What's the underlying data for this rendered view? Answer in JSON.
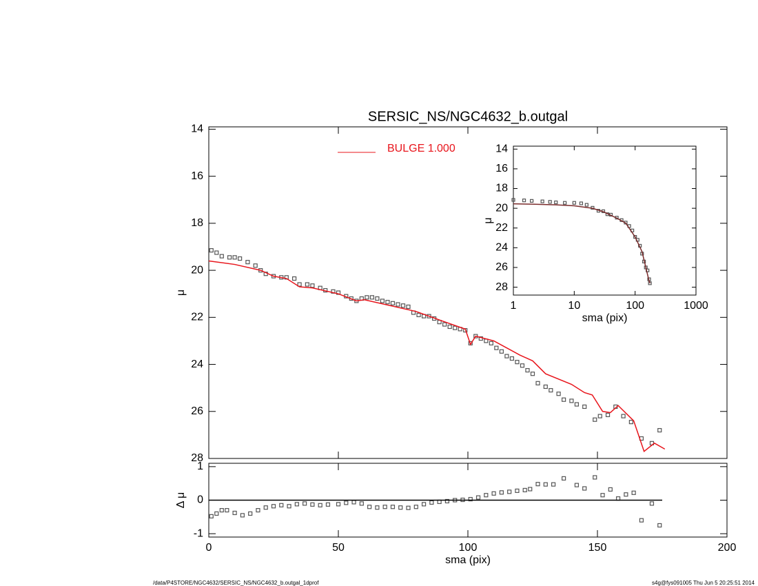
{
  "chart_data": [
    {
      "type": "line",
      "title": "SERSIC_NS/NGC4632_b.outgal",
      "ylabel": "μ",
      "xlim": [
        0,
        200
      ],
      "xticks": [
        0,
        50,
        100,
        150,
        200
      ],
      "xtick_labels": false,
      "ylim": [
        13.9,
        28
      ],
      "y_reversed": true,
      "yticks": [
        14,
        16,
        18,
        20,
        22,
        24,
        26,
        28
      ],
      "legend": "top-center",
      "series": [
        {
          "marker": "square",
          "color": "#555555",
          "x": [
            1,
            3,
            5,
            8,
            10,
            12,
            15,
            18,
            20,
            22,
            25,
            28,
            30,
            33,
            35,
            38,
            40,
            43,
            45,
            48,
            50,
            53,
            55,
            57,
            59,
            61,
            63,
            65,
            67,
            69,
            71,
            73,
            75,
            77,
            79,
            81,
            83,
            85,
            87,
            89,
            91,
            93,
            95,
            97,
            99,
            101,
            103,
            105,
            107,
            109,
            111,
            113,
            115,
            117,
            119,
            121,
            123,
            125,
            127,
            130,
            132,
            135,
            137,
            140,
            142,
            145,
            149,
            151,
            154,
            157,
            160,
            163,
            167,
            171,
            174
          ],
          "values": [
            19.15,
            19.25,
            19.4,
            19.45,
            19.45,
            19.5,
            19.65,
            19.8,
            20.0,
            20.15,
            20.25,
            20.3,
            20.3,
            20.35,
            20.6,
            20.6,
            20.65,
            20.75,
            20.85,
            20.9,
            20.95,
            21.1,
            21.2,
            21.3,
            21.2,
            21.15,
            21.15,
            21.2,
            21.3,
            21.35,
            21.4,
            21.45,
            21.5,
            21.55,
            21.8,
            21.9,
            21.95,
            21.95,
            22.05,
            22.2,
            22.3,
            22.4,
            22.45,
            22.5,
            22.55,
            23.1,
            22.8,
            22.9,
            23.0,
            23.1,
            23.3,
            23.45,
            23.65,
            23.75,
            23.9,
            24.05,
            24.25,
            24.4,
            24.8,
            24.95,
            25.1,
            25.25,
            25.5,
            25.55,
            25.7,
            25.8,
            26.35,
            26.2,
            26.15,
            25.8,
            26.2,
            26.45,
            27.15,
            27.35,
            26.8
          ]
        },
        {
          "name": "BULGE  1.000",
          "marker": "line",
          "color": "#e8141b",
          "x": [
            0,
            10,
            20,
            25,
            30,
            35,
            40,
            50,
            57,
            60,
            70,
            80,
            90,
            99,
            101,
            103,
            110,
            115,
            120,
            125,
            130,
            140,
            145,
            148,
            152,
            155,
            158,
            164,
            168,
            172,
            176
          ],
          "values": [
            19.6,
            19.75,
            20.0,
            20.25,
            20.35,
            20.7,
            20.75,
            21.0,
            21.3,
            21.25,
            21.5,
            21.75,
            22.15,
            22.5,
            23.15,
            22.8,
            23.0,
            23.3,
            23.6,
            23.85,
            24.4,
            24.85,
            25.2,
            25.3,
            26.0,
            26.05,
            25.75,
            26.4,
            27.7,
            27.35,
            27.6
          ]
        }
      ]
    },
    {
      "type": "line",
      "xlabel": "sma (pix)",
      "ylabel": "Δ μ",
      "xlim": [
        0,
        200
      ],
      "xticks": [
        0,
        50,
        100,
        150,
        200
      ],
      "ylim": [
        -1.1,
        1.1
      ],
      "yticks": [
        -1,
        0,
        1
      ],
      "series": [
        {
          "marker": "square",
          "color": "#555555",
          "x": [
            1,
            3,
            5,
            7,
            10,
            13,
            16,
            19,
            22,
            25,
            28,
            31,
            34,
            37,
            40,
            43,
            46,
            50,
            53,
            56,
            59,
            62,
            65,
            68,
            71,
            74,
            77,
            80,
            83,
            86,
            89,
            92,
            95,
            98,
            101,
            104,
            107,
            110,
            113,
            116,
            119,
            122,
            124,
            127,
            130,
            133,
            137,
            142,
            145,
            149,
            152,
            155,
            158,
            161,
            164,
            167,
            171,
            174
          ],
          "values": [
            -0.48,
            -0.4,
            -0.3,
            -0.3,
            -0.38,
            -0.45,
            -0.4,
            -0.3,
            -0.22,
            -0.18,
            -0.15,
            -0.18,
            -0.12,
            -0.1,
            -0.13,
            -0.15,
            -0.13,
            -0.12,
            -0.08,
            -0.06,
            -0.1,
            -0.2,
            -0.22,
            -0.2,
            -0.2,
            -0.22,
            -0.23,
            -0.2,
            -0.12,
            -0.07,
            -0.05,
            -0.03,
            0,
            0.01,
            0.03,
            0.08,
            0.15,
            0.2,
            0.23,
            0.25,
            0.28,
            0.3,
            0.33,
            0.48,
            0.47,
            0.47,
            0.65,
            0.45,
            0.35,
            0.68,
            0.15,
            0.32,
            0.05,
            0.17,
            0.22,
            -0.6,
            -0.1,
            -0.75
          ]
        },
        {
          "marker": "line",
          "color": "#000000",
          "x": [
            0,
            175
          ],
          "values": [
            0,
            0
          ]
        }
      ]
    },
    {
      "type": "line",
      "xlabel": "sma (pix)",
      "ylabel": "μ",
      "xscale": "log",
      "xlim": [
        1,
        1000
      ],
      "xticks": [
        1,
        10,
        100,
        1000
      ],
      "ylim": [
        13.7,
        28.8
      ],
      "y_reversed": true,
      "yticks": [
        14,
        16,
        18,
        20,
        22,
        24,
        26,
        28
      ],
      "series": [
        {
          "marker": "square",
          "color": "#555555",
          "x": [
            1,
            1.5,
            2,
            3,
            4,
            5,
            7,
            10,
            13,
            16,
            20,
            25,
            30,
            35,
            40,
            50,
            60,
            70,
            80,
            90,
            100,
            110,
            120,
            130,
            140,
            150,
            160,
            170,
            175
          ],
          "values": [
            19.15,
            19.2,
            19.25,
            19.3,
            19.35,
            19.4,
            19.45,
            19.45,
            19.5,
            19.65,
            19.95,
            20.25,
            20.3,
            20.6,
            20.65,
            20.95,
            21.2,
            21.45,
            21.8,
            22.25,
            22.9,
            23.2,
            23.8,
            24.6,
            25.4,
            26.0,
            26.3,
            27.2,
            27.6
          ]
        },
        {
          "marker": "line",
          "color": "#7a2b2b",
          "x": [
            1,
            2,
            5,
            10,
            20,
            30,
            50,
            70,
            100,
            130,
            150,
            170,
            176
          ],
          "values": [
            19.55,
            19.58,
            19.65,
            19.75,
            20.0,
            20.35,
            21.0,
            21.5,
            22.9,
            24.4,
            26.0,
            27.4,
            27.6
          ]
        }
      ]
    }
  ],
  "footer": {
    "left": "/data/P4STORE/NGC4632/SERSIC_NS/NGC4632_b.outgal_1dprof",
    "right": "s4g@fys091005  Thu Jun  5 20:25:51 2014"
  }
}
